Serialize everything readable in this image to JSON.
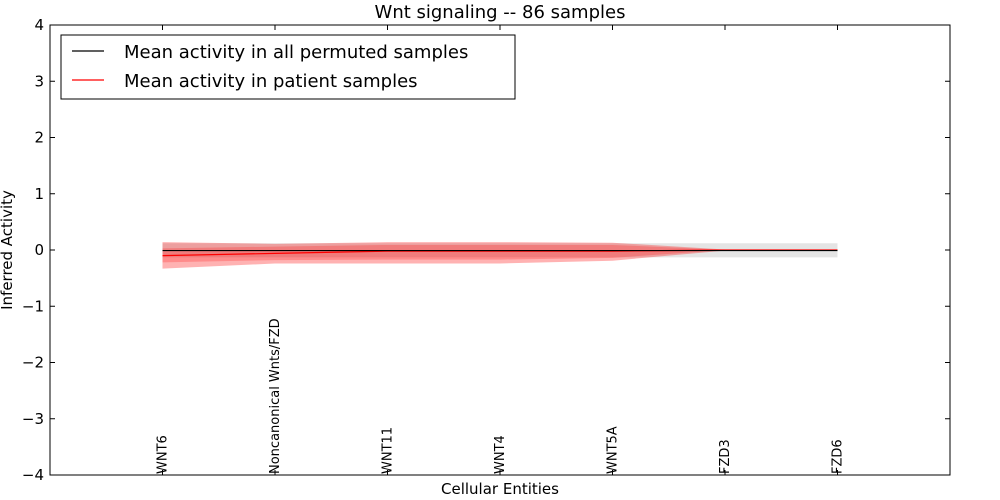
{
  "chart_data": {
    "type": "line",
    "title": "Wnt signaling -- 86 samples",
    "xlabel": "Cellular Entities",
    "ylabel": "Inferred Activity",
    "ylim": [
      -4,
      4
    ],
    "yticks": [
      -4,
      -3,
      -2,
      -1,
      0,
      1,
      2,
      3,
      4
    ],
    "ytick_labels": [
      "−4",
      "−3",
      "−2",
      "−1",
      "0",
      "1",
      "2",
      "3",
      "4"
    ],
    "xlim": [
      -1,
      7
    ],
    "categories": [
      "WNT6",
      "Noncanonical Wnts/FZD",
      "WNT11",
      "WNT4",
      "WNT5A",
      "FZD3",
      "FZD6"
    ],
    "grid": false,
    "legend_position": "top-left",
    "series": [
      {
        "name": "Mean activity in all permuted samples",
        "color": "#000000",
        "values": [
          -0.01,
          -0.01,
          -0.01,
          -0.01,
          -0.01,
          -0.01,
          -0.01
        ],
        "band_lower": [
          -0.13,
          -0.13,
          -0.13,
          -0.13,
          -0.13,
          -0.13,
          -0.13
        ],
        "band_upper": [
          0.12,
          0.12,
          0.12,
          0.12,
          0.12,
          0.12,
          0.12
        ],
        "band_color": "#b3b3b3"
      },
      {
        "name": "Mean activity in patient samples",
        "color": "#ff0000",
        "values": [
          -0.1,
          -0.06,
          -0.02,
          -0.02,
          -0.02,
          0.0,
          0.0
        ],
        "band_lower": [
          -0.33,
          -0.24,
          -0.24,
          -0.24,
          -0.19,
          -0.01,
          -0.01
        ],
        "band_upper": [
          0.14,
          0.11,
          0.14,
          0.14,
          0.13,
          0.01,
          0.01
        ],
        "inner_lower": [
          -0.22,
          -0.18,
          -0.17,
          -0.17,
          -0.14,
          0.0,
          0.0
        ],
        "inner_upper": [
          0.03,
          0.06,
          0.09,
          0.09,
          0.09,
          0.005,
          0.005
        ],
        "band_color": "#ff0000"
      }
    ]
  }
}
